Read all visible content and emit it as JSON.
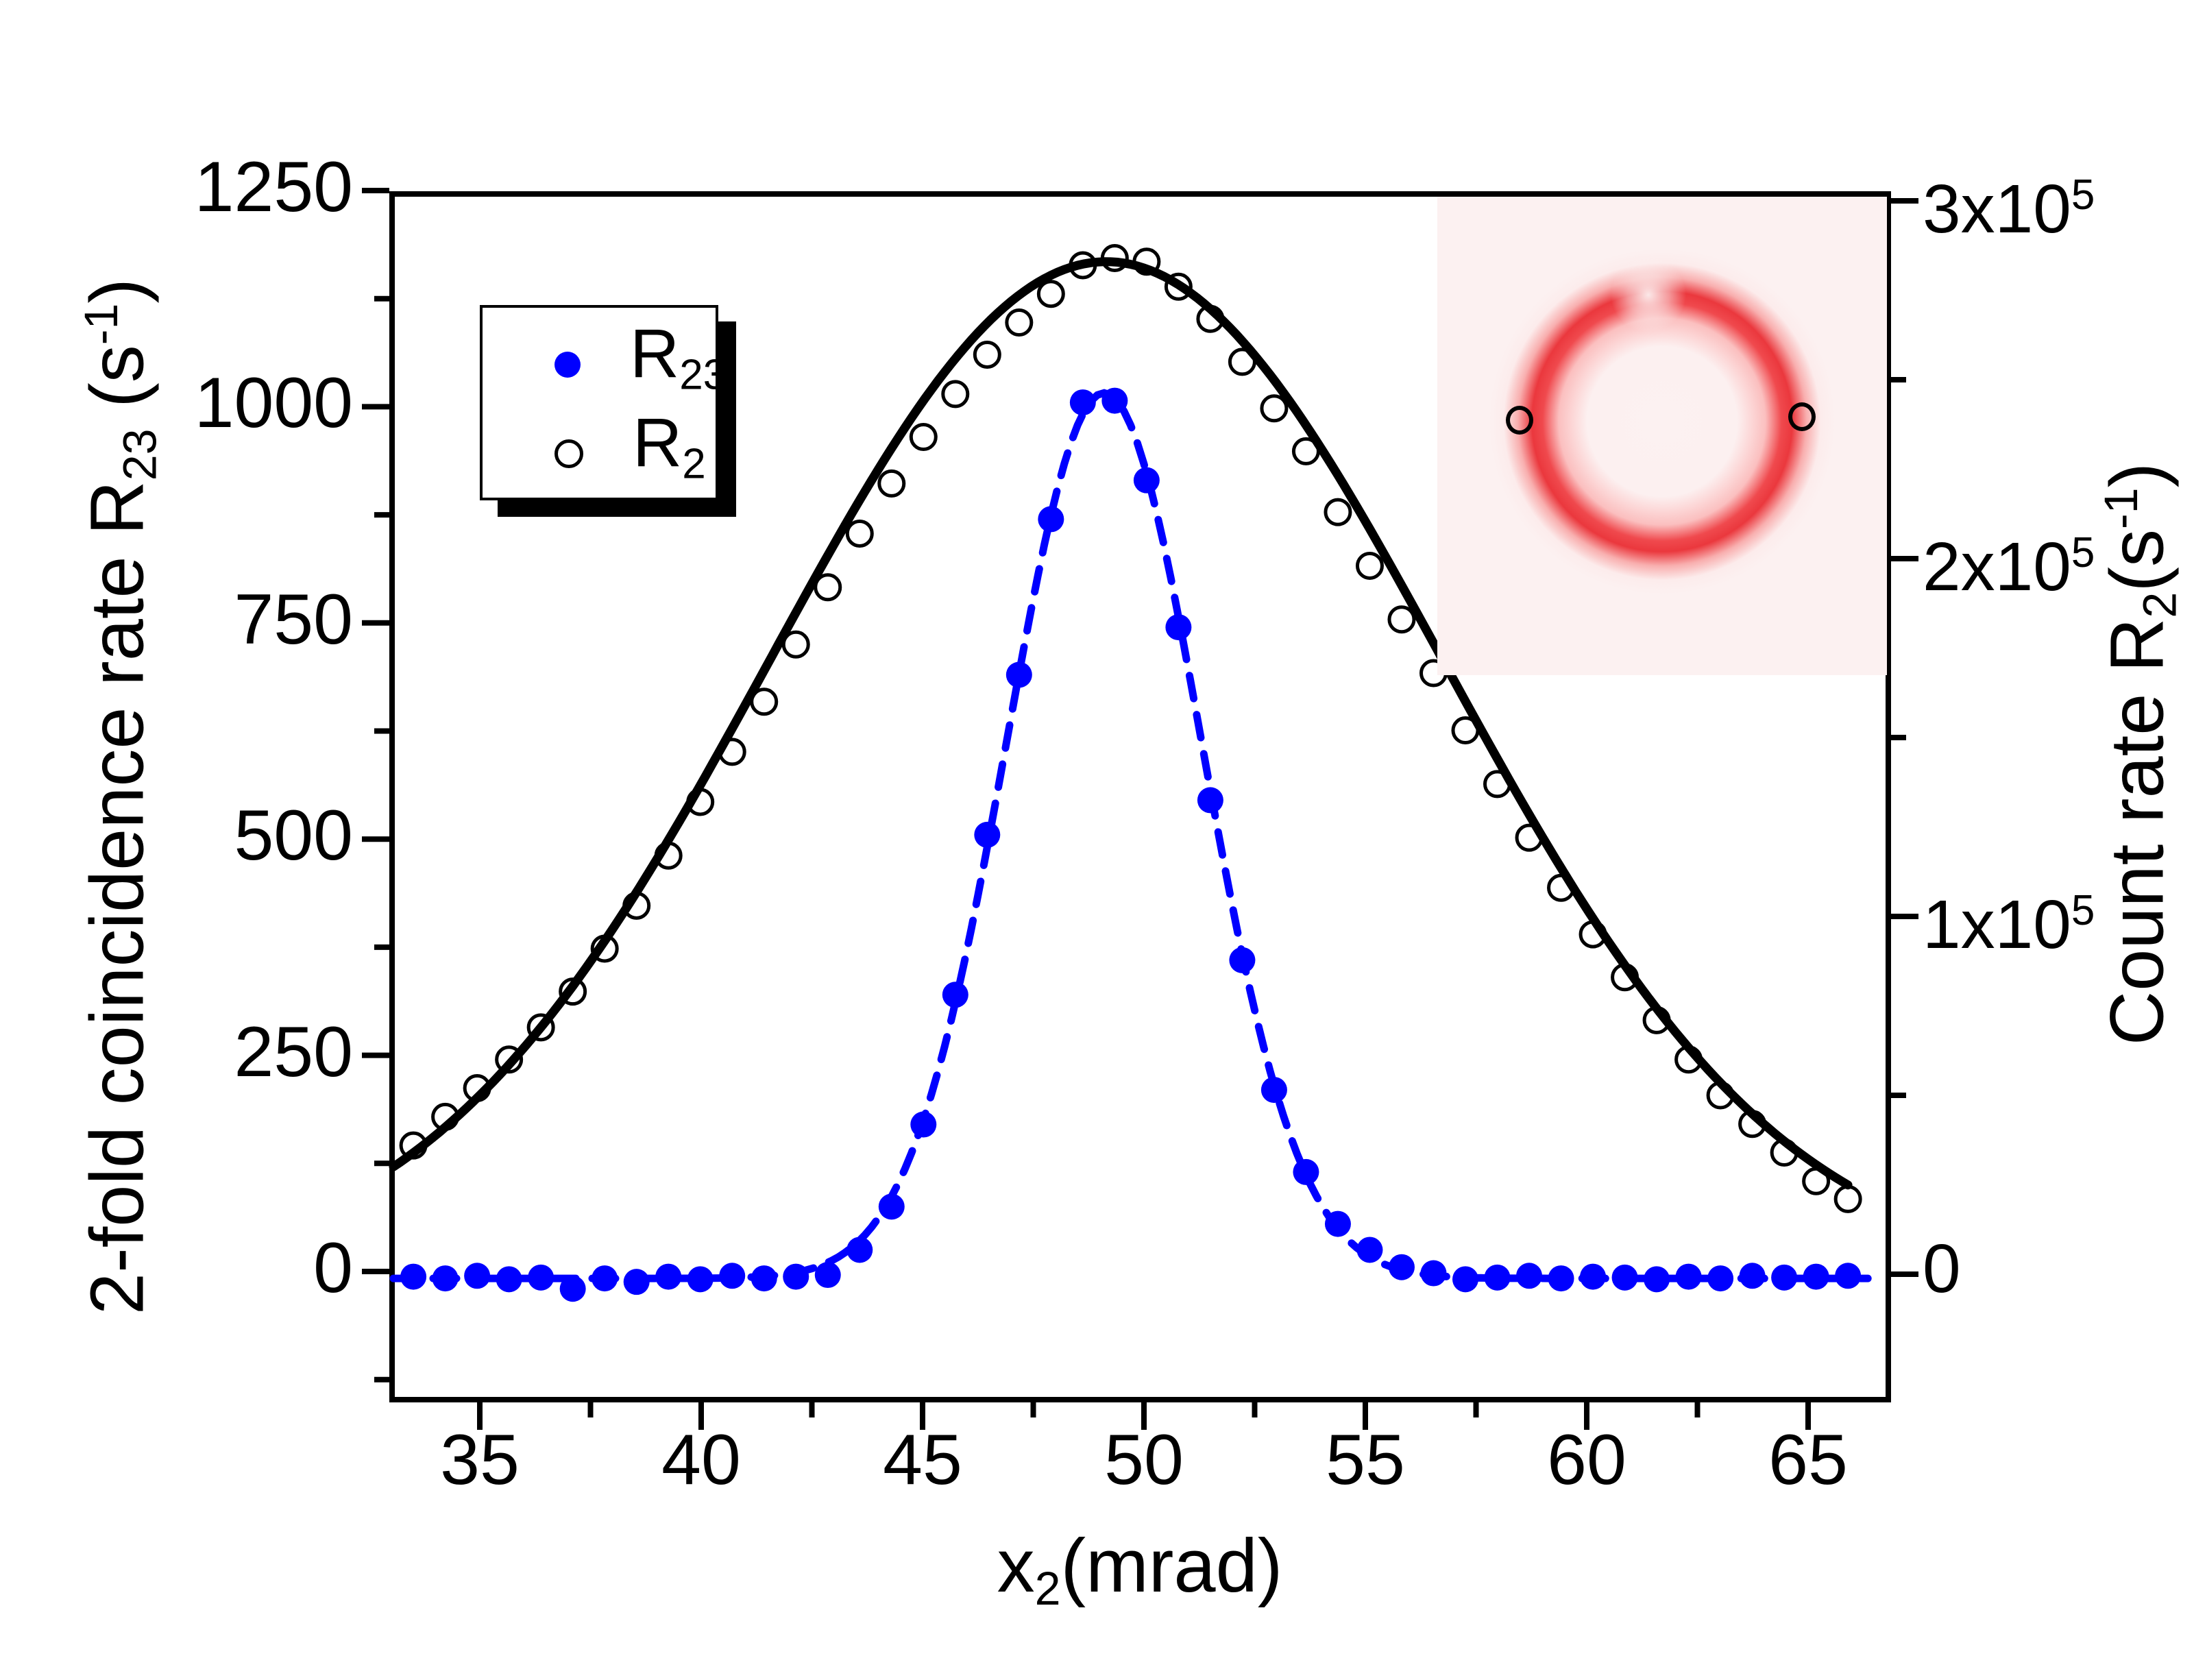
{
  "colors": {
    "series_r23": "#0000ff",
    "series_r2": "#000000",
    "frame": "#000000",
    "ring_red": "#e9282e",
    "inset_background": "#fcf1f1"
  },
  "legend": {
    "items": [
      {
        "main": "R",
        "sub": "23",
        "marker": "filled-blue-circle"
      },
      {
        "main": "R",
        "sub": "2",
        "marker": "open-black-circle"
      }
    ]
  },
  "chart_data": {
    "type": "scatter",
    "x_axis": {
      "title_parts": {
        "main": "x",
        "sub": "2",
        "unit": "(mrad)"
      },
      "range": [
        33.05,
        66.85
      ],
      "major_ticks": [
        {
          "value": 35,
          "label": "35"
        },
        {
          "value": 40,
          "label": "40"
        },
        {
          "value": 45,
          "label": "45"
        },
        {
          "value": 50,
          "label": "50"
        },
        {
          "value": 55,
          "label": "55"
        },
        {
          "value": 60,
          "label": "60"
        },
        {
          "value": 65,
          "label": "65"
        }
      ],
      "minor_ticks": [
        37.5,
        42.5,
        47.5,
        52.5,
        57.5,
        62.5
      ]
    },
    "y_left": {
      "title_parts": {
        "main": "2-fold coincidence rate R",
        "sub": "23",
        "unit_open": " (s",
        "unit_sup": "-1",
        "unit_close": ")"
      },
      "range": [
        -148,
        1250
      ],
      "major_ticks": [
        {
          "value": 1250,
          "label": "1250"
        },
        {
          "value": 1000,
          "label": "1000"
        },
        {
          "value": 750,
          "label": "750"
        },
        {
          "value": 500,
          "label": "500"
        },
        {
          "value": 250,
          "label": "250"
        },
        {
          "value": 0,
          "label": "0"
        }
      ],
      "minor_ticks": [
        1125,
        875,
        625,
        375,
        125,
        -125
      ]
    },
    "y_right": {
      "title_parts": {
        "main": "Count rate R",
        "sub": "2",
        "unit_open": "(s",
        "unit_sup": "-1",
        "unit_close": ")"
      },
      "range": [
        -35000,
        300000
      ],
      "major_ticks": [
        {
          "value": 300000,
          "mant": "3x10",
          "exp": "5"
        },
        {
          "value": 200000,
          "mant": "2x10",
          "exp": "5"
        },
        {
          "value": 100000,
          "mant": "1x10",
          "exp": "5"
        },
        {
          "value": 0,
          "mant": "0",
          "exp": ""
        }
      ],
      "minor_ticks": [
        250000,
        150000,
        50000
      ]
    },
    "series": [
      {
        "name": "R23",
        "axis": "left",
        "marker": "filled-circle",
        "line": "dashed",
        "color": "#0000ff",
        "points": [
          [
            33.5,
            -6
          ],
          [
            34.22,
            -8
          ],
          [
            34.94,
            -5
          ],
          [
            35.66,
            -9
          ],
          [
            36.38,
            -7
          ],
          [
            37.1,
            -20
          ],
          [
            37.82,
            -8
          ],
          [
            38.54,
            -12
          ],
          [
            39.26,
            -6
          ],
          [
            39.98,
            -9
          ],
          [
            40.7,
            -5
          ],
          [
            41.42,
            -8
          ],
          [
            42.14,
            -6
          ],
          [
            42.86,
            -4
          ],
          [
            43.58,
            25
          ],
          [
            44.3,
            75
          ],
          [
            45.02,
            170
          ],
          [
            45.74,
            320
          ],
          [
            46.46,
            505
          ],
          [
            47.18,
            690
          ],
          [
            47.9,
            870
          ],
          [
            48.62,
            1005
          ],
          [
            49.34,
            1007
          ],
          [
            50.06,
            915
          ],
          [
            50.78,
            745
          ],
          [
            51.5,
            545
          ],
          [
            52.22,
            360
          ],
          [
            52.94,
            210
          ],
          [
            53.66,
            115
          ],
          [
            54.38,
            55
          ],
          [
            55.1,
            25
          ],
          [
            55.82,
            5
          ],
          [
            56.54,
            -2
          ],
          [
            57.26,
            -9
          ],
          [
            57.98,
            -7
          ],
          [
            58.7,
            -5
          ],
          [
            59.42,
            -8
          ],
          [
            60.14,
            -6
          ],
          [
            60.86,
            -7
          ],
          [
            61.58,
            -9
          ],
          [
            62.3,
            -6
          ],
          [
            63.02,
            -8
          ],
          [
            63.74,
            -5
          ],
          [
            64.46,
            -7
          ],
          [
            65.18,
            -6
          ],
          [
            65.9,
            -5
          ]
        ]
      },
      {
        "name": "R2",
        "axis": "right",
        "marker": "open-circle",
        "line": "solid",
        "color": "#000000",
        "points": [
          [
            33.5,
            36000
          ],
          [
            34.22,
            44000
          ],
          [
            34.94,
            52000
          ],
          [
            35.66,
            60000
          ],
          [
            36.38,
            69000
          ],
          [
            37.1,
            79000
          ],
          [
            37.82,
            91000
          ],
          [
            38.54,
            103000
          ],
          [
            39.26,
            117000
          ],
          [
            39.98,
            132000
          ],
          [
            40.7,
            146000
          ],
          [
            41.42,
            160000
          ],
          [
            42.14,
            176000
          ],
          [
            42.86,
            192000
          ],
          [
            43.58,
            207000
          ],
          [
            44.3,
            221000
          ],
          [
            45.02,
            234000
          ],
          [
            45.74,
            246000
          ],
          [
            46.46,
            257000
          ],
          [
            47.18,
            266000
          ],
          [
            47.9,
            274000
          ],
          [
            48.62,
            282000
          ],
          [
            49.34,
            284000
          ],
          [
            50.06,
            283000
          ],
          [
            50.78,
            276000
          ],
          [
            51.5,
            267000
          ],
          [
            52.22,
            255000
          ],
          [
            52.94,
            242000
          ],
          [
            53.66,
            230000
          ],
          [
            54.38,
            213000
          ],
          [
            55.1,
            198000
          ],
          [
            55.82,
            183000
          ],
          [
            56.54,
            168000
          ],
          [
            57.26,
            152000
          ],
          [
            57.98,
            137000
          ],
          [
            58.7,
            122000
          ],
          [
            59.42,
            108000
          ],
          [
            60.14,
            95000
          ],
          [
            60.86,
            83000
          ],
          [
            61.58,
            71000
          ],
          [
            62.3,
            60000
          ],
          [
            63.02,
            50000
          ],
          [
            63.74,
            42000
          ],
          [
            64.46,
            34000
          ],
          [
            65.18,
            26000
          ],
          [
            65.9,
            21000
          ]
        ]
      }
    ],
    "fits": {
      "r23": {
        "type": "gaussian",
        "amplitude": 1024,
        "center": 49.1,
        "sigma": 2.2,
        "baseline": -8,
        "x_start": 33.05,
        "x_end": 66.45
      },
      "r2": {
        "type": "gaussian",
        "amplitude": 283000,
        "center": 49.15,
        "sigma": 7.6,
        "baseline": 0,
        "x_start": 33.05,
        "x_end": 65.95
      }
    }
  },
  "inset": {
    "markers": [
      "left-ring-marker",
      "right-ring-marker"
    ]
  }
}
